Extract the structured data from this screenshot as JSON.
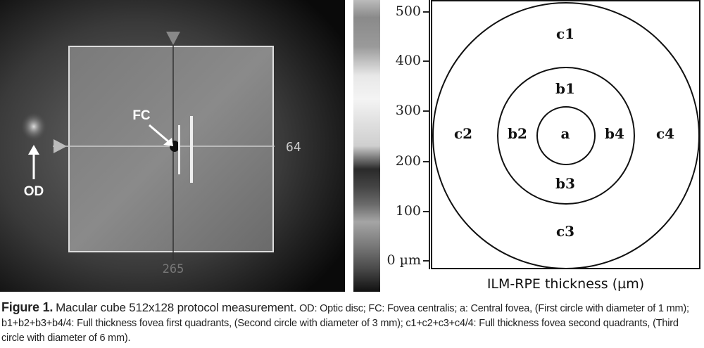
{
  "oct_image": {
    "labels": {
      "od": "OD",
      "fc": "FC",
      "row": "64",
      "col": "265"
    }
  },
  "colorbar": {
    "ticks": [
      "500",
      "400",
      "300",
      "200",
      "100",
      "0 µm"
    ]
  },
  "thickness_map": {
    "zones": {
      "c1": "c1",
      "b1": "b1",
      "c2": "c2",
      "b2": "b2",
      "a": "a",
      "b4": "b4",
      "c4": "c4",
      "b3": "b3",
      "c3": "c3"
    },
    "label": "ILM-RPE thickness (µm)"
  },
  "caption": {
    "figure": "Figure 1.",
    "title": "Macular cube 512x128 protocol measurement.",
    "text": "OD: Optic disc; FC: Fovea centralis; a: Central fovea, (First circle with diameter of 1 mm); b1+b2+b3+b4/4: Full thickness fovea first quadrants, (Second circle with diameter of 3 mm); c1+c2+c3+c4/4: Full thickness fovea second quadrants, (Third circle with diameter of 6 mm)."
  }
}
